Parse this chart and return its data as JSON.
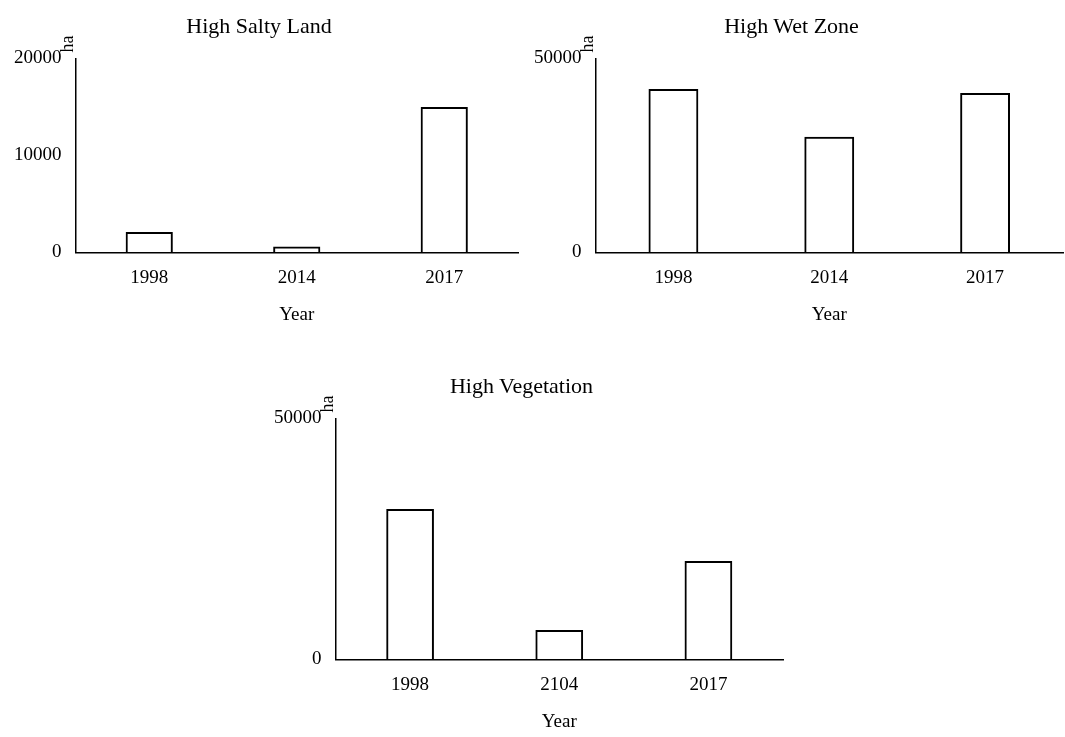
{
  "chart_data": [
    {
      "type": "bar",
      "title": "High Salty Land",
      "xlabel": "Year",
      "ylabel": "ha",
      "categories": [
        "1998",
        "2014",
        "2017"
      ],
      "values": [
        2100,
        600,
        15000
      ],
      "color": "#000000",
      "ylim": [
        0,
        20000
      ],
      "yticks": [
        0,
        10000,
        20000
      ],
      "grid": false,
      "legend": false
    },
    {
      "type": "bar",
      "title": "High Wet Zone",
      "xlabel": "Year",
      "ylabel": "ha",
      "categories": [
        "1998",
        "2014",
        "2017"
      ],
      "values": [
        42100,
        29800,
        41100
      ],
      "color": "#000000",
      "ylim": [
        0,
        50000
      ],
      "yticks": [
        0,
        50000
      ],
      "grid": false,
      "legend": false
    },
    {
      "type": "bar",
      "title": "High Vegetation",
      "xlabel": "Year",
      "ylabel": "ha",
      "categories": [
        "1998",
        "2104",
        "2017"
      ],
      "values": [
        31200,
        6100,
        20400
      ],
      "color": "#000000",
      "ylim": [
        0,
        50000
      ],
      "yticks": [
        0,
        50000
      ],
      "grid": false,
      "legend": false
    }
  ]
}
